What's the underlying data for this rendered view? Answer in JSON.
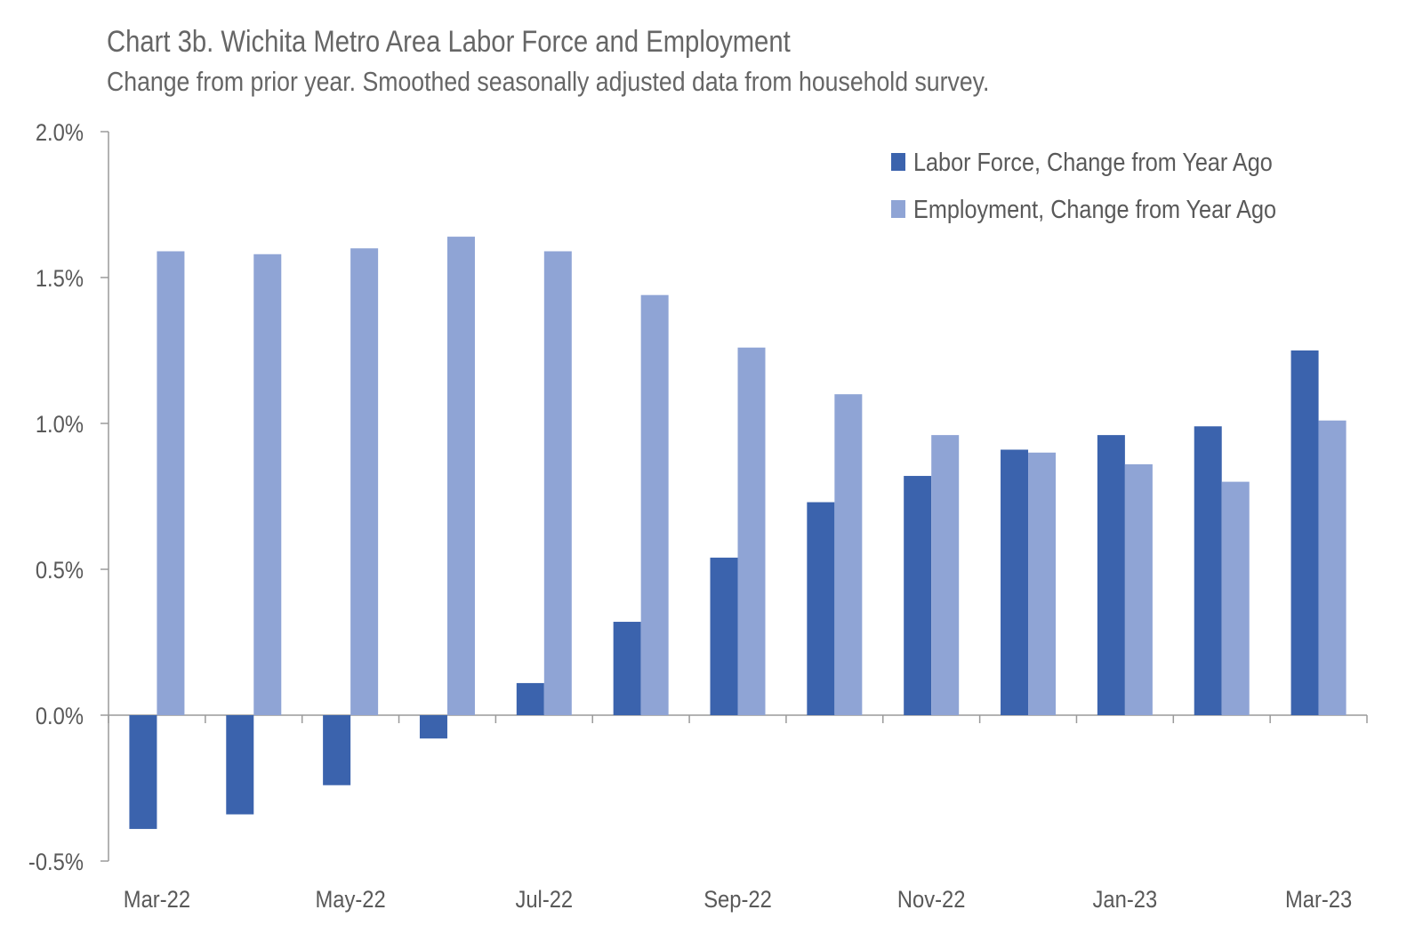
{
  "chart_data": {
    "type": "bar",
    "title": "Chart 3b. Wichita Metro Area Labor Force and Employment",
    "subtitle": "Change from prior year. Smoothed seasonally adjusted data from household survey.",
    "categories": [
      "Mar-22",
      "Apr-22",
      "May-22",
      "Jun-22",
      "Jul-22",
      "Aug-22",
      "Sep-22",
      "Oct-22",
      "Nov-22",
      "Dec-22",
      "Jan-23",
      "Feb-23",
      "Mar-23"
    ],
    "x_tick_labels": [
      "Mar-22",
      "May-22",
      "Jul-22",
      "Sep-22",
      "Nov-22",
      "Jan-23",
      "Mar-23"
    ],
    "y_tick_labels": [
      "2.0%",
      "1.5%",
      "1.0%",
      "0.5%",
      "0.0%",
      "-0.5%"
    ],
    "ylim": [
      -0.5,
      2.0
    ],
    "ylabel": "",
    "xlabel": "",
    "grid": false,
    "legend_position": "top-right",
    "series": [
      {
        "name": "Labor Force, Change from Year Ago",
        "color": "#3B63AD",
        "values": [
          -0.39,
          -0.34,
          -0.24,
          -0.08,
          0.11,
          0.32,
          0.54,
          0.73,
          0.82,
          0.91,
          0.96,
          0.99,
          1.25
        ]
      },
      {
        "name": "Employment, Change from Year Ago",
        "color": "#8FA4D5",
        "values": [
          1.59,
          1.58,
          1.6,
          1.64,
          1.59,
          1.44,
          1.26,
          1.1,
          0.96,
          0.9,
          0.86,
          0.8,
          1.01
        ]
      }
    ]
  }
}
